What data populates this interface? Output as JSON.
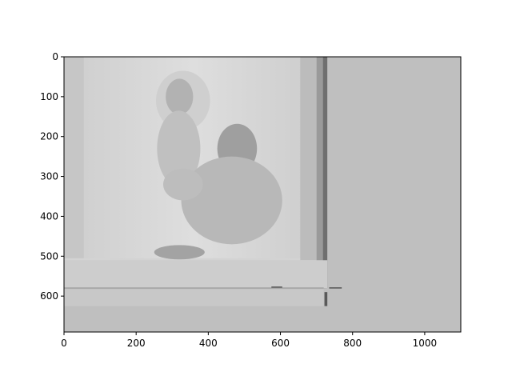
{
  "chart_data": {
    "type": "image",
    "title": "",
    "xlabel": "",
    "ylabel": "",
    "xlim": [
      0,
      1100
    ],
    "ylim": [
      690,
      0
    ],
    "y_inverted": true,
    "grid": false,
    "x_ticks": [
      0,
      200,
      400,
      600,
      800,
      1000
    ],
    "y_ticks": [
      0,
      100,
      200,
      300,
      400,
      500,
      600
    ],
    "x_tick_labels": [
      "0",
      "200",
      "400",
      "600",
      "800",
      "1000"
    ],
    "y_tick_labels": [
      "0",
      "100",
      "200",
      "300",
      "400",
      "500",
      "600"
    ],
    "image": {
      "extent_x": [
        0,
        1100
      ],
      "extent_y": [
        0,
        690
      ],
      "content": "grayscale photo of a man holding a young child",
      "photo_region_x": [
        0,
        730
      ],
      "photo_region_y": [
        0,
        580
      ],
      "background_gray": "#bfbfbf"
    }
  },
  "colors": {
    "background": "#ffffff",
    "image_fill": "#bfbfbf",
    "axis": "#000000"
  }
}
